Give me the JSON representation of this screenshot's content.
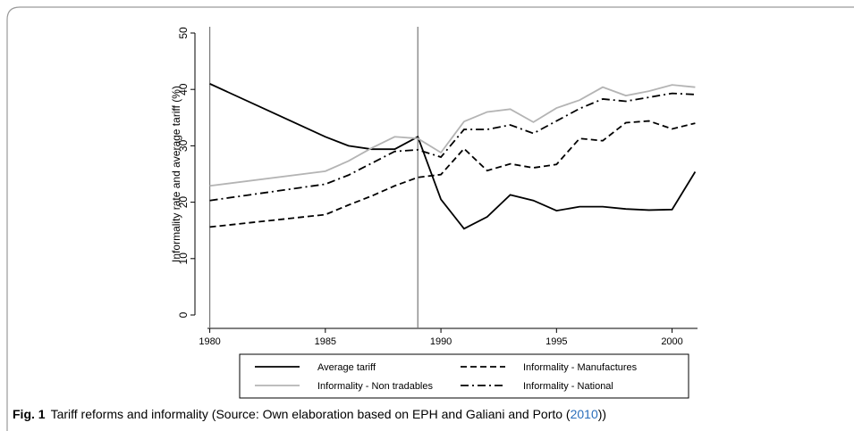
{
  "chart_data": {
    "type": "line",
    "ylabel": "Informality rate and average tariff (%)",
    "x": [
      1980,
      1985,
      1986,
      1987,
      1988,
      1989,
      1990,
      1991,
      1992,
      1993,
      1994,
      1995,
      1996,
      1997,
      1998,
      1999,
      2000,
      2001
    ],
    "series": [
      {
        "name": "Average tariff",
        "color": "#000000",
        "dash": "solid",
        "values": [
          41,
          31.6,
          30,
          29.4,
          29.4,
          31.6,
          20.5,
          15.3,
          17.4,
          21.3,
          20.3,
          18.5,
          19.2,
          19.2,
          18.8,
          18.6,
          18.7,
          25.4
        ]
      },
      {
        "name": "Informality - Manufactures",
        "color": "#000000",
        "dash": "dashed",
        "values": [
          15.6,
          17.8,
          19.5,
          21.1,
          22.9,
          24.4,
          24.9,
          29.5,
          25.6,
          26.8,
          26.1,
          26.7,
          31.3,
          30.9,
          34.1,
          34.4,
          33,
          34
        ]
      },
      {
        "name": "Informality - Non tradables",
        "color": "#b4b4b4",
        "dash": "solid",
        "values": [
          22.9,
          25.5,
          27.3,
          29.6,
          31.6,
          31.3,
          28.8,
          34.3,
          36,
          36.5,
          34.2,
          36.7,
          38.1,
          40.4,
          38.9,
          39.7,
          40.8,
          40.4
        ]
      },
      {
        "name": "Informality - National",
        "color": "#000000",
        "dash": "dashdot",
        "values": [
          20.3,
          23.2,
          24.8,
          26.9,
          29,
          29.3,
          28,
          32.9,
          32.9,
          33.7,
          32.2,
          34.4,
          36.6,
          38.3,
          37.9,
          38.6,
          39.3,
          39.1
        ]
      }
    ],
    "vlines": [
      1980,
      1989
    ],
    "xlim": [
      1979.9,
      2001.1
    ],
    "xticks": [
      1980,
      1985,
      1990,
      1995,
      2000
    ],
    "ylim": [
      0,
      50
    ],
    "yticks": [
      0,
      10,
      20,
      30,
      40,
      50
    ]
  },
  "caption": {
    "label": "Fig. 1",
    "text": "Tariff reforms and informality (Source: Own elaboration based on EPH and Galiani and Porto (",
    "cite": "2010",
    "end": "))"
  }
}
